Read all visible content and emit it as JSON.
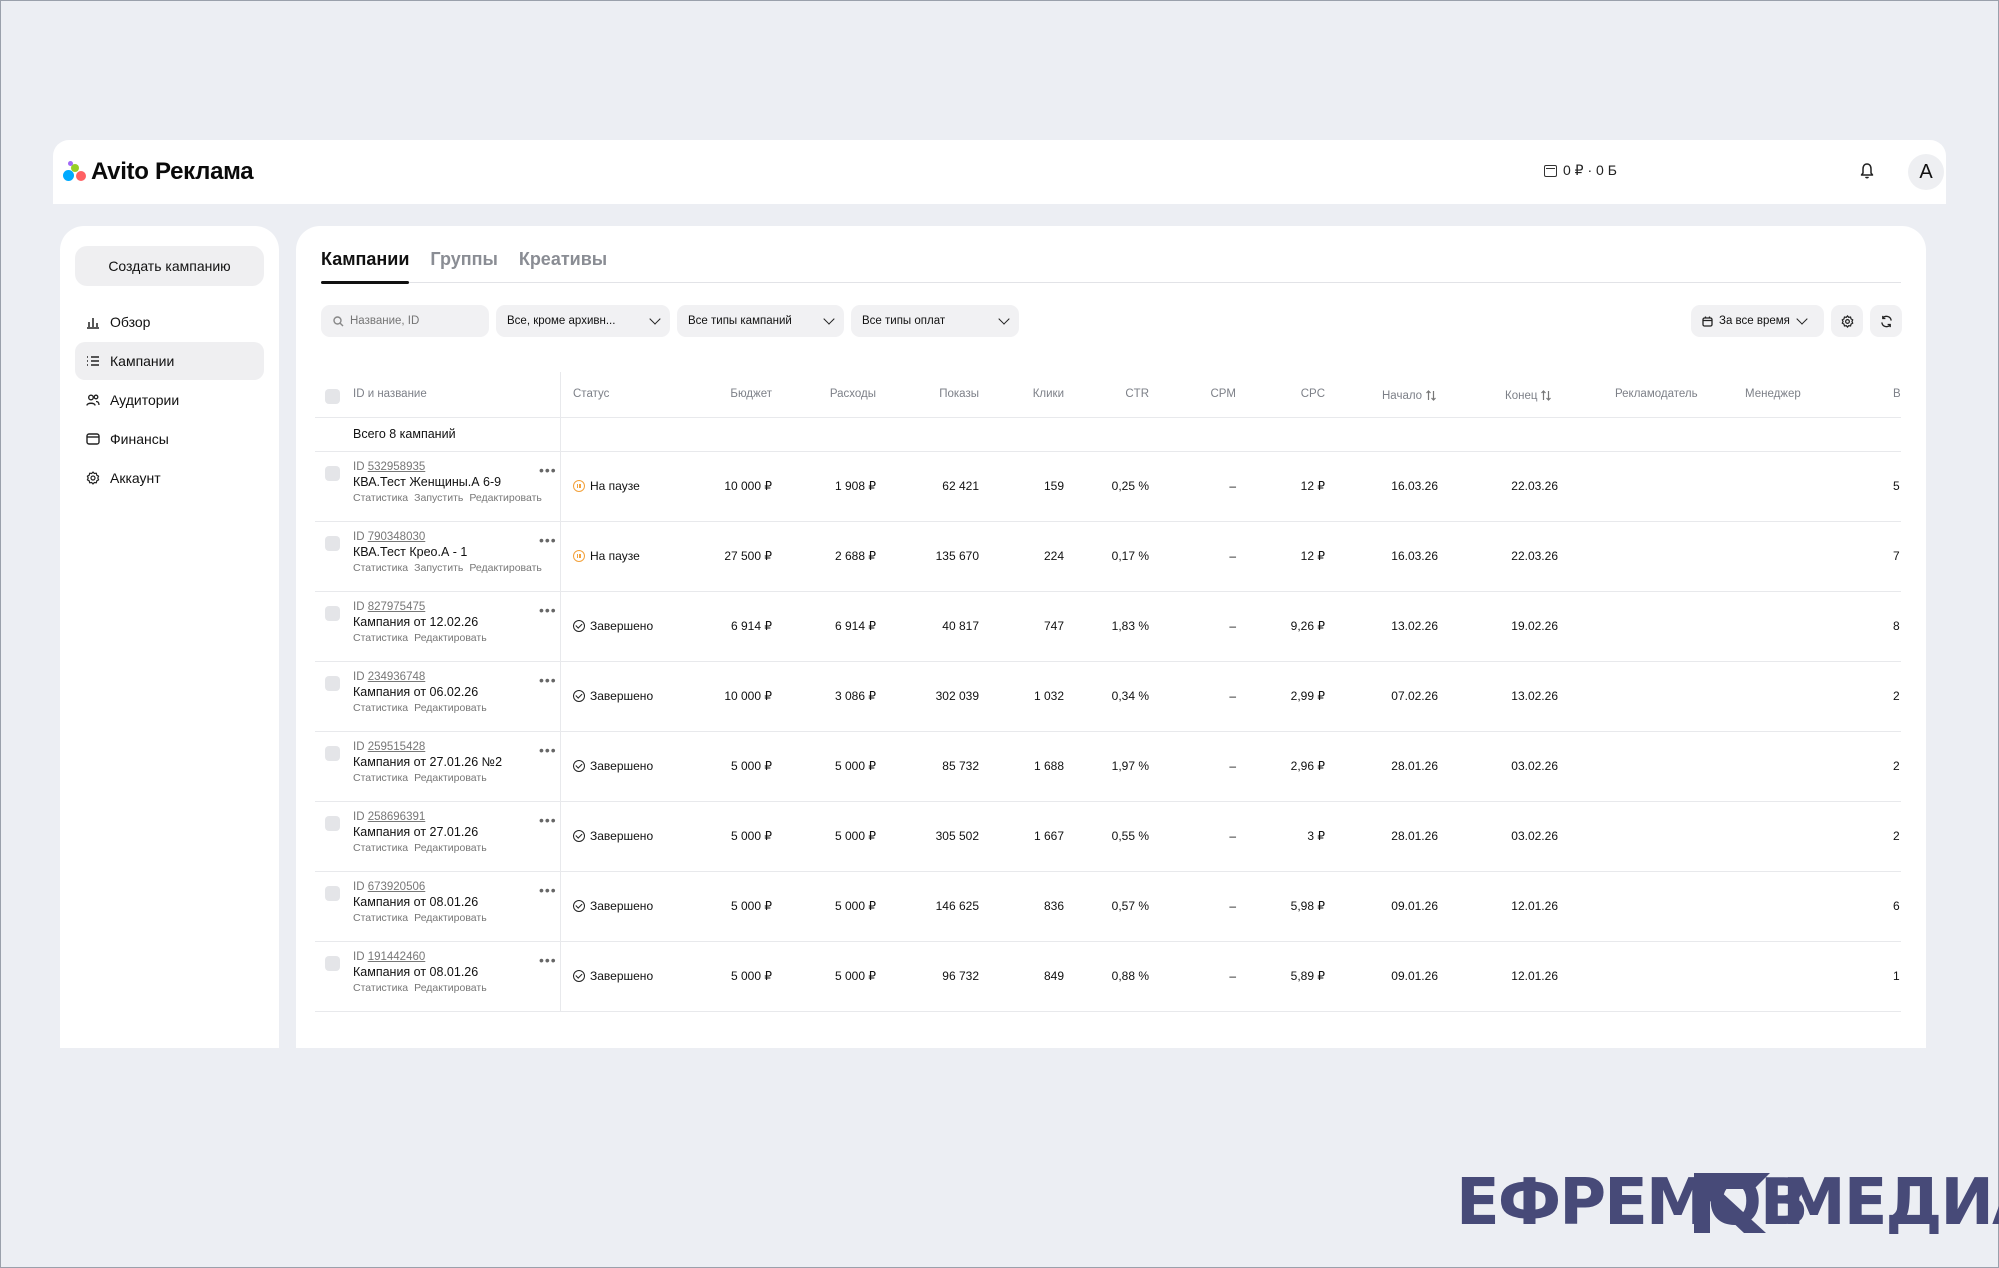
{
  "app": {
    "logo_text": "Avito Реклама",
    "balance": "0 ₽ · 0 Б"
  },
  "header": {
    "avatar_letter": "A"
  },
  "sidebar": {
    "create_button": "Создать кампанию",
    "items": [
      {
        "label": "Обзор",
        "icon": "chart-bar-icon"
      },
      {
        "label": "Кампании",
        "icon": "list-icon",
        "active": true
      },
      {
        "label": "Аудитории",
        "icon": "users-icon"
      },
      {
        "label": "Финансы",
        "icon": "wallet-icon"
      },
      {
        "label": "Аккаунт",
        "icon": "gear-icon"
      }
    ]
  },
  "tabs": [
    "Кампании",
    "Группы",
    "Креативы"
  ],
  "filters": {
    "search_placeholder": "Название, ID",
    "status": "Все, кроме архивн...",
    "types": "Все типы кампаний",
    "payments": "Все типы оплат",
    "period": "За все время"
  },
  "table": {
    "headers": {
      "id_name": "ID и название",
      "status": "Статус",
      "budget": "Бюджет",
      "spend": "Расходы",
      "impressions": "Показы",
      "clicks": "Клики",
      "ctr": "CTR",
      "cpm": "CPM",
      "cpc": "CPC",
      "start": "Начало",
      "end": "Конец",
      "advertiser": "Рекламодатель",
      "manager": "Менеджер",
      "extra": "В"
    },
    "total": "Всего 8 кампаний",
    "rows": [
      {
        "id_prefix": "ID",
        "id": "532958935",
        "name": "КВА.Тест Женщины.А 6-9",
        "actions": [
          "Статистика",
          "Запустить",
          "Редактировать"
        ],
        "status": "На паузе",
        "status_kind": "pause",
        "budget": "10 000 ₽",
        "spend": "1 908 ₽",
        "impressions": "62 421",
        "clicks": "159",
        "ctr": "0,25 %",
        "cpm": "–",
        "cpc": "12 ₽",
        "start": "16.03.26",
        "end": "22.03.26",
        "extra": "5"
      },
      {
        "id_prefix": "ID",
        "id": "790348030",
        "name": "КВА.Тест Крео.А - 1",
        "actions": [
          "Статистика",
          "Запустить",
          "Редактировать"
        ],
        "status": "На паузе",
        "status_kind": "pause",
        "budget": "27 500 ₽",
        "spend": "2 688 ₽",
        "impressions": "135 670",
        "clicks": "224",
        "ctr": "0,17 %",
        "cpm": "–",
        "cpc": "12 ₽",
        "start": "16.03.26",
        "end": "22.03.26",
        "extra": "7"
      },
      {
        "id_prefix": "ID",
        "id": "827975475",
        "name": "Кампания от 12.02.26",
        "actions": [
          "Статистика",
          "Редактировать"
        ],
        "status": "Завершено",
        "status_kind": "done",
        "budget": "6 914 ₽",
        "spend": "6 914 ₽",
        "impressions": "40 817",
        "clicks": "747",
        "ctr": "1,83 %",
        "cpm": "–",
        "cpc": "9,26 ₽",
        "start": "13.02.26",
        "end": "19.02.26",
        "extra": "8"
      },
      {
        "id_prefix": "ID",
        "id": "234936748",
        "name": "Кампания от 06.02.26",
        "actions": [
          "Статистика",
          "Редактировать"
        ],
        "status": "Завершено",
        "status_kind": "done",
        "budget": "10 000 ₽",
        "spend": "3 086 ₽",
        "impressions": "302 039",
        "clicks": "1 032",
        "ctr": "0,34 %",
        "cpm": "–",
        "cpc": "2,99 ₽",
        "start": "07.02.26",
        "end": "13.02.26",
        "extra": "2"
      },
      {
        "id_prefix": "ID",
        "id": "259515428",
        "name": "Кампания от 27.01.26 №2",
        "actions": [
          "Статистика",
          "Редактировать"
        ],
        "status": "Завершено",
        "status_kind": "done",
        "budget": "5 000 ₽",
        "spend": "5 000 ₽",
        "impressions": "85 732",
        "clicks": "1 688",
        "ctr": "1,97 %",
        "cpm": "–",
        "cpc": "2,96 ₽",
        "start": "28.01.26",
        "end": "03.02.26",
        "extra": "2"
      },
      {
        "id_prefix": "ID",
        "id": "258696391",
        "name": "Кампания от 27.01.26",
        "actions": [
          "Статистика",
          "Редактировать"
        ],
        "status": "Завершено",
        "status_kind": "done",
        "budget": "5 000 ₽",
        "spend": "5 000 ₽",
        "impressions": "305 502",
        "clicks": "1 667",
        "ctr": "0,55 %",
        "cpm": "–",
        "cpc": "3 ₽",
        "start": "28.01.26",
        "end": "03.02.26",
        "extra": "2"
      },
      {
        "id_prefix": "ID",
        "id": "673920506",
        "name": "Кампания от 08.01.26",
        "actions": [
          "Статистика",
          "Редактировать"
        ],
        "status": "Завершено",
        "status_kind": "done",
        "budget": "5 000 ₽",
        "spend": "5 000 ₽",
        "impressions": "146 625",
        "clicks": "836",
        "ctr": "0,57 %",
        "cpm": "–",
        "cpc": "5,98 ₽",
        "start": "09.01.26",
        "end": "12.01.26",
        "extra": "6"
      },
      {
        "id_prefix": "ID",
        "id": "191442460",
        "name": "Кампания от 08.01.26",
        "actions": [
          "Статистика",
          "Редактировать"
        ],
        "status": "Завершено",
        "status_kind": "done",
        "budget": "5 000 ₽",
        "spend": "5 000 ₽",
        "impressions": "96 732",
        "clicks": "849",
        "ctr": "0,88 %",
        "cpm": "–",
        "cpc": "5,89 ₽",
        "start": "09.01.26",
        "end": "12.01.26",
        "extra": "1"
      }
    ]
  },
  "watermark": {
    "left": "ЕФРЕМОВ",
    "right": "МЕДИА"
  },
  "colors": {
    "background": "#eceef3",
    "accent_pause": "#f3a23c",
    "watermark": "#474a78"
  }
}
